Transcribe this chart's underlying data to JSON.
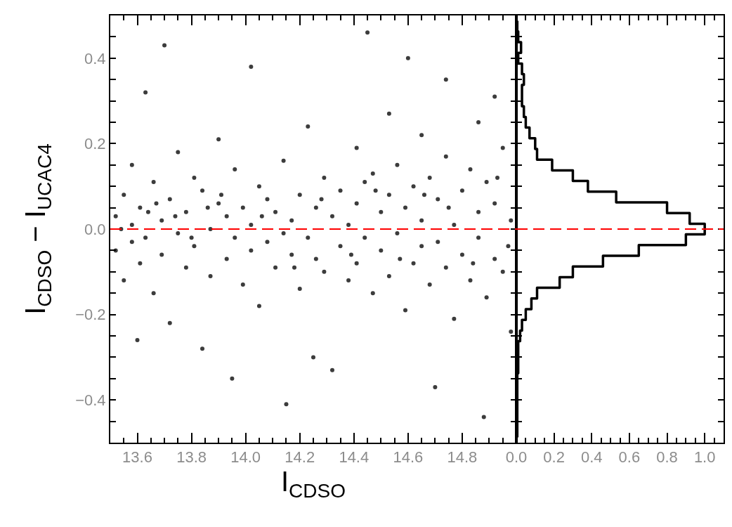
{
  "chart_data": [
    {
      "type": "scatter",
      "xlabel": "I$_{CDSO}$",
      "ylabel": "I$_{CDSO}$ − I$_{UCAC4}$",
      "color": "#3c3c3c",
      "marker": "circle",
      "x": [
        13.52,
        13.52,
        13.54,
        13.55,
        13.55,
        13.58,
        13.58,
        13.58,
        13.6,
        13.61,
        13.61,
        13.63,
        13.63,
        13.64,
        13.66,
        13.66,
        13.69,
        13.69,
        13.7,
        13.72,
        13.72,
        13.74,
        13.75,
        13.75,
        13.78,
        13.78,
        13.81,
        13.81,
        13.84,
        13.84,
        13.86,
        13.87,
        13.87,
        13.9,
        13.9,
        13.93,
        13.93,
        13.95,
        13.96,
        13.96,
        13.99,
        13.99,
        14.02,
        14.02,
        14.02,
        14.05,
        14.05,
        14.08,
        14.08,
        14.11,
        14.11,
        14.14,
        14.14,
        14.15,
        14.17,
        14.17,
        14.2,
        14.2,
        14.23,
        14.23,
        14.25,
        14.26,
        14.26,
        14.29,
        14.29,
        14.32,
        14.32,
        14.35,
        14.35,
        14.38,
        14.38,
        14.41,
        14.41,
        14.41,
        14.44,
        14.44,
        14.45,
        14.47,
        14.47,
        14.5,
        14.5,
        14.53,
        14.53,
        14.53,
        14.56,
        14.56,
        14.59,
        14.59,
        14.6,
        14.62,
        14.62,
        14.65,
        14.65,
        14.65,
        14.68,
        14.68,
        14.7,
        14.71,
        14.71,
        14.74,
        14.74,
        14.74,
        14.77,
        14.77,
        14.8,
        14.8,
        14.83,
        14.83,
        14.86,
        14.86,
        14.86,
        14.88,
        14.89,
        14.89,
        14.92,
        14.92,
        14.92,
        14.95,
        14.95,
        14.98,
        14.98,
        13.67,
        13.8,
        13.91,
        14.06,
        14.18,
        14.28,
        14.39,
        14.48,
        14.57,
        14.66,
        14.75,
        14.84,
        14.93,
        14.97
      ],
      "values": [
        0.03,
        -0.05,
        0.0,
        0.08,
        -0.12,
        0.01,
        0.15,
        -0.03,
        -0.26,
        -0.08,
        0.05,
        0.32,
        -0.02,
        0.04,
        0.11,
        -0.15,
        0.02,
        -0.06,
        0.43,
        0.07,
        -0.22,
        0.03,
        -0.01,
        0.18,
        0.04,
        -0.09,
        -0.04,
        0.12,
        0.09,
        -0.28,
        0.05,
        0.0,
        -0.11,
        0.06,
        0.21,
        -0.07,
        0.03,
        -0.35,
        0.14,
        -0.02,
        -0.13,
        0.05,
        0.01,
        -0.05,
        0.38,
        0.1,
        -0.18,
        -0.03,
        0.07,
        0.04,
        -0.09,
        0.16,
        -0.01,
        -0.41,
        -0.06,
        0.02,
        0.08,
        -0.14,
        -0.02,
        0.24,
        -0.3,
        0.05,
        -0.07,
        -0.1,
        0.12,
        0.03,
        -0.33,
        0.09,
        -0.04,
        -0.12,
        0.01,
        0.06,
        -0.08,
        0.19,
        -0.02,
        0.11,
        0.46,
        0.13,
        -0.15,
        -0.05,
        0.04,
        0.08,
        -0.11,
        0.27,
        -0.01,
        0.15,
        0.05,
        -0.19,
        0.4,
        -0.08,
        0.1,
        0.02,
        -0.04,
        0.22,
        0.12,
        -0.13,
        -0.37,
        -0.03,
        0.07,
        0.17,
        -0.09,
        0.35,
        0.01,
        -0.21,
        0.09,
        -0.06,
        -0.12,
        0.14,
        0.04,
        -0.02,
        0.25,
        -0.44,
        0.11,
        -0.16,
        -0.07,
        0.06,
        0.31,
        0.19,
        -0.1,
        0.02,
        -0.24,
        0.06,
        -0.02,
        0.08,
        0.03,
        -0.09,
        0.07,
        -0.06,
        0.09,
        -0.07,
        0.08,
        0.05,
        -0.08,
        0.12,
        -0.04
      ],
      "xlim": [
        13.5,
        15.0
      ],
      "ylim": [
        -0.5,
        0.5
      ],
      "xticks": [
        {
          "value": 13.55,
          "label": null
        },
        13.6,
        {
          "value": 13.65,
          "label": null
        },
        {
          "value": 13.7,
          "label": null
        },
        {
          "value": 13.75,
          "label": null
        },
        13.8,
        {
          "value": 13.85,
          "label": null
        },
        {
          "value": 13.9,
          "label": null
        },
        {
          "value": 13.95,
          "label": null
        },
        {
          "value": 14.0,
          "label": "14.0"
        },
        {
          "value": 14.05,
          "label": null
        },
        {
          "value": 14.1,
          "label": null
        },
        {
          "value": 14.15,
          "label": null
        },
        14.2,
        {
          "value": 14.25,
          "label": null
        },
        {
          "value": 14.3,
          "label": null
        },
        {
          "value": 14.35,
          "label": null
        },
        14.4,
        {
          "value": 14.45,
          "label": null
        },
        {
          "value": 14.5,
          "label": null
        },
        {
          "value": 14.55,
          "label": null
        },
        14.6,
        {
          "value": 14.65,
          "label": null
        },
        {
          "value": 14.7,
          "label": null
        },
        {
          "value": 14.75,
          "label": null
        },
        14.8,
        {
          "value": 14.85,
          "label": null
        },
        {
          "value": 14.9,
          "label": null
        },
        {
          "value": 14.95,
          "label": null
        }
      ],
      "yticks": [
        {
          "value": -0.45,
          "label": null
        },
        {
          "value": -0.4,
          "label": "−0.4"
        },
        {
          "value": -0.35,
          "label": null
        },
        {
          "value": -0.3,
          "label": null
        },
        {
          "value": -0.25,
          "label": null
        },
        {
          "value": -0.2,
          "label": "−0.2"
        },
        {
          "value": -0.15,
          "label": null
        },
        {
          "value": -0.1,
          "label": null
        },
        {
          "value": -0.05,
          "label": null
        },
        {
          "value": 0.0,
          "label": "0.0"
        },
        {
          "value": 0.05,
          "label": null
        },
        {
          "value": 0.1,
          "label": null
        },
        {
          "value": 0.15,
          "label": null
        },
        0.2,
        {
          "value": 0.25,
          "label": null
        },
        {
          "value": 0.3,
          "label": null
        },
        {
          "value": 0.35,
          "label": null
        },
        0.4,
        {
          "value": 0.45,
          "label": null
        }
      ],
      "ref_lines": [
        {
          "axis": "y",
          "value": 0,
          "color": "#ff0000",
          "line_style": "dashed"
        }
      ]
    },
    {
      "type": "histogram",
      "orientation": "horizontal",
      "color": "#000000",
      "line_style": "solid",
      "bins": [
        -0.4875,
        -0.4625,
        -0.4375,
        -0.4125,
        -0.3875,
        -0.3625,
        -0.3375,
        -0.3125,
        -0.2875,
        -0.2625,
        -0.2375,
        -0.2125,
        -0.1875,
        -0.1625,
        -0.1375,
        -0.1125,
        -0.0875,
        -0.0625,
        -0.0375,
        -0.0125,
        0.0125,
        0.0375,
        0.0625,
        0.0875,
        0.1125,
        0.1375,
        0.1625,
        0.1875,
        0.2125,
        0.2375,
        0.2625,
        0.2875,
        0.3125,
        0.3375,
        0.3625,
        0.3875,
        0.4125,
        0.4375,
        0.4625,
        0.4875
      ],
      "values": [
        0.005,
        0.005,
        0.005,
        0.005,
        0.005,
        0.005,
        0.01,
        0.01,
        0.01,
        0.02,
        0.03,
        0.05,
        0.08,
        0.11,
        0.23,
        0.3,
        0.46,
        0.65,
        0.9,
        1.0,
        0.92,
        0.8,
        0.53,
        0.38,
        0.3,
        0.19,
        0.11,
        0.1,
        0.07,
        0.05,
        0.04,
        0.03,
        0.03,
        0.04,
        0.03,
        0.01,
        0.025,
        0.01,
        0.005
      ],
      "xlim": [
        0,
        1.1
      ],
      "ylim": [
        -0.5,
        0.5
      ],
      "xticks": [
        {
          "value": 0.0,
          "label": "0.0"
        },
        {
          "value": 0.05,
          "label": null
        },
        {
          "value": 0.1,
          "label": null
        },
        {
          "value": 0.15,
          "label": null
        },
        0.2,
        {
          "value": 0.25,
          "label": null
        },
        {
          "value": 0.3,
          "label": null
        },
        {
          "value": 0.35,
          "label": null
        },
        0.4,
        {
          "value": 0.45,
          "label": null
        },
        {
          "value": 0.5,
          "label": null
        },
        {
          "value": 0.55,
          "label": null
        },
        0.6,
        {
          "value": 0.65,
          "label": null
        },
        {
          "value": 0.7,
          "label": null
        },
        {
          "value": 0.75,
          "label": null
        },
        0.8,
        {
          "value": 0.85,
          "label": null
        },
        {
          "value": 0.9,
          "label": null
        },
        {
          "value": 0.95,
          "label": null
        },
        {
          "value": 1.0,
          "label": "1.0"
        },
        {
          "value": 1.05,
          "label": null
        }
      ],
      "yticks": [
        {
          "value": -0.45,
          "label": null
        },
        {
          "value": -0.4,
          "label": null
        },
        {
          "value": -0.35,
          "label": null
        },
        {
          "value": -0.3,
          "label": null
        },
        {
          "value": -0.25,
          "label": null
        },
        {
          "value": -0.2,
          "label": null
        },
        {
          "value": -0.15,
          "label": null
        },
        {
          "value": -0.1,
          "label": null
        },
        {
          "value": -0.05,
          "label": null
        },
        {
          "value": 0.0,
          "label": null
        },
        {
          "value": 0.05,
          "label": null
        },
        {
          "value": 0.1,
          "label": null
        },
        {
          "value": 0.15,
          "label": null
        },
        {
          "value": 0.2,
          "label": null
        },
        {
          "value": 0.25,
          "label": null
        },
        {
          "value": 0.3,
          "label": null
        },
        {
          "value": 0.35,
          "label": null
        },
        {
          "value": 0.4,
          "label": null
        },
        {
          "value": 0.45,
          "label": null
        }
      ],
      "tick_labels": "x",
      "ref_lines": [
        {
          "axis": "y",
          "value": 0,
          "color": "#ff0000",
          "line_style": "dashed"
        }
      ]
    }
  ]
}
